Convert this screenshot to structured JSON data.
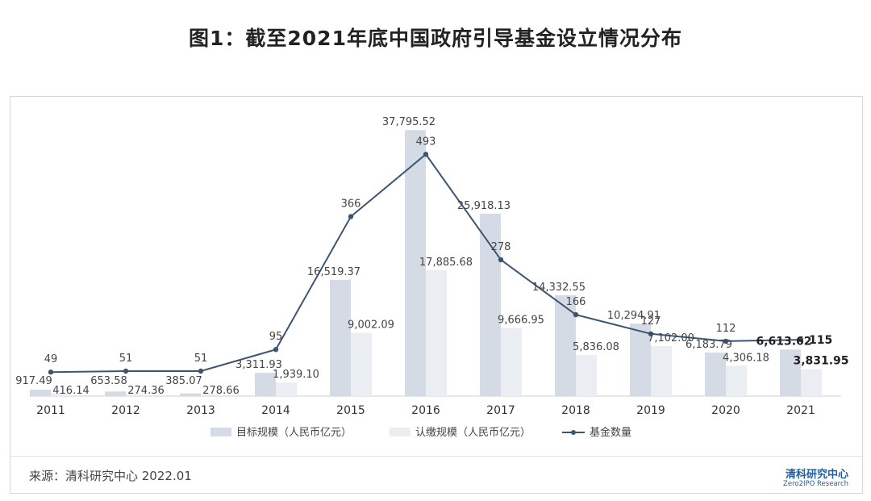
{
  "title": "图1：截至2021年底中国政府引导基金设立情况分布",
  "footer": {
    "source": "来源：清科研究中心 2022.01",
    "brand_cn": "清科研究中心",
    "brand_en": "Zero2IPO Research"
  },
  "colors": {
    "target_bar": "#d4dbe5",
    "subscribed_bar": "#eaeef2",
    "line": "#3d5670"
  },
  "chart_data": {
    "type": "bar",
    "categories": [
      "2011",
      "2012",
      "2013",
      "2014",
      "2015",
      "2016",
      "2017",
      "2018",
      "2019",
      "2020",
      "2021"
    ],
    "series": [
      {
        "name": "目标规模（人民币亿元）",
        "type": "bar",
        "axis": "left",
        "values": [
          917.49,
          653.58,
          385.07,
          3311.93,
          16519.37,
          37795.52,
          25918.13,
          14332.55,
          10294.91,
          6183.79,
          6613.62
        ],
        "labels": [
          "917.49",
          "653.58",
          "385.07",
          "3,311.93",
          "16,519.37",
          "37,795.52",
          "25,918.13",
          "14,332.55",
          "10,294.91",
          "6,183.79",
          "6,613.62"
        ]
      },
      {
        "name": "认缴规模（人民币亿元）",
        "type": "bar",
        "axis": "left",
        "values": [
          416.14,
          274.36,
          278.66,
          1939.1,
          9002.09,
          17885.68,
          9666.95,
          5836.08,
          7102.0,
          4306.18,
          3831.95
        ],
        "labels": [
          "416.14",
          "274.36",
          "278.66",
          "1,939.10",
          "9,002.09",
          "17,885.68",
          "9,666.95",
          "5,836.08",
          "7,102.00",
          "4,306.18",
          "3,831.95"
        ]
      },
      {
        "name": "基金数量",
        "type": "line",
        "axis": "right",
        "values": [
          49,
          51,
          51,
          95,
          366,
          493,
          278,
          166,
          127,
          112,
          115
        ],
        "labels": [
          "49",
          "51",
          "51",
          "95",
          "366",
          "493",
          "278",
          "166",
          "127",
          "112",
          "115"
        ]
      }
    ],
    "ylim_left": [
      0,
      40000
    ],
    "ylim_right": [
      0,
      500
    ],
    "grid": false,
    "legend_position": "bottom"
  }
}
